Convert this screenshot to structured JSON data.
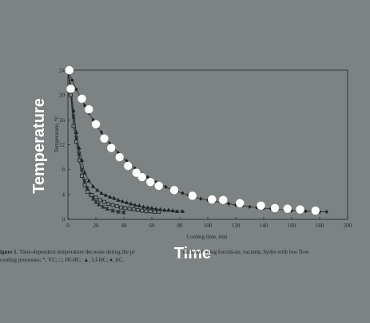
{
  "overlay": {
    "y_label": "Temperature",
    "x_label": "Time",
    "point_color": "#ffffff"
  },
  "caption": {
    "fig_label": "igure 1.",
    "line1": "Time-dependent temperature decrease during the pr",
    "line1_end": "uliflower using forced-air, vacuum, hydro with low flow",
    "line2": "cooling processes; *, VC; □, Hf-HC; ▲, Lf-HC; ♦, AC."
  },
  "chart_data": {
    "type": "scatter",
    "xlabel": "Cooling time, min",
    "ylabel": "Temperature, °C",
    "xlim": [
      0,
      200
    ],
    "ylim": [
      0,
      24
    ],
    "xticks": [
      0,
      20,
      40,
      60,
      80,
      100,
      120,
      140,
      160,
      180,
      200
    ],
    "yticks": [
      0,
      4,
      8,
      12,
      16,
      20,
      24
    ],
    "grid": false,
    "colors": {
      "axis": "#1e2324",
      "marks": "#1e2324",
      "overlay_points": "#ffffff"
    },
    "series": [
      {
        "name": "*",
        "marker": "star",
        "x": [
          0,
          2,
          4,
          6,
          8,
          10,
          12,
          14,
          16,
          18,
          20,
          22,
          25,
          28,
          32,
          36,
          40
        ],
        "y": [
          24,
          20.5,
          16.5,
          13,
          10.5,
          8,
          6.2,
          5,
          4,
          3.3,
          2.8,
          2.4,
          2,
          1.7,
          1.4,
          1.2,
          1.1
        ]
      },
      {
        "name": "□",
        "marker": "square",
        "x": [
          0,
          2,
          4,
          6,
          8,
          10,
          12,
          14,
          17,
          20,
          23,
          26,
          29,
          32,
          35,
          38,
          41,
          44,
          47,
          50,
          53,
          56,
          59,
          62,
          65
        ],
        "y": [
          24,
          20,
          15,
          12.5,
          9.5,
          7,
          5.5,
          4.4,
          3.9,
          3.5,
          3.1,
          2.8,
          2.5,
          2.3,
          2.1,
          1.9,
          1.8,
          1.7,
          1.6,
          1.5,
          1.4,
          1.3,
          1.3,
          1.2,
          1.2
        ]
      },
      {
        "name": "▲",
        "marker": "triangle",
        "x": [
          0,
          2,
          4,
          6,
          8,
          10,
          12,
          15,
          18,
          21,
          24,
          27,
          30,
          33,
          36,
          39,
          42,
          45,
          48,
          51,
          54,
          57,
          60,
          63,
          66,
          69,
          72,
          75,
          78,
          82
        ],
        "y": [
          24,
          21.5,
          17.5,
          14,
          11.5,
          9.5,
          7.5,
          6.2,
          5.3,
          4.7,
          4.2,
          3.9,
          3.6,
          3.4,
          3.1,
          2.9,
          2.7,
          2.5,
          2.3,
          2.2,
          2.0,
          1.9,
          1.8,
          1.7,
          1.6,
          1.5,
          1.5,
          1.4,
          1.3,
          1.3
        ]
      },
      {
        "name": "♦",
        "marker": "diamond",
        "x": [
          0,
          3,
          6,
          9,
          12,
          15,
          18,
          21,
          24,
          27,
          30,
          33,
          36,
          39,
          42,
          45,
          48,
          51,
          54,
          57,
          60,
          63,
          66,
          70,
          74,
          78,
          82,
          86,
          90,
          95,
          100,
          105,
          110,
          115,
          120,
          125,
          130,
          135,
          140,
          145,
          150,
          155,
          160,
          165,
          170,
          175,
          180,
          185
        ],
        "y": [
          24,
          22.4,
          20.9,
          19.6,
          18.3,
          17.1,
          16.0,
          14.9,
          14.0,
          13.1,
          12.2,
          11.4,
          10.7,
          10.0,
          9.4,
          8.8,
          8.2,
          7.7,
          7.2,
          6.8,
          6.4,
          6.0,
          5.7,
          5.2,
          4.8,
          4.5,
          4.2,
          3.9,
          3.6,
          3.3,
          3.1,
          2.9,
          2.7,
          2.5,
          2.3,
          2.2,
          2.0,
          1.9,
          1.8,
          1.7,
          1.6,
          1.5,
          1.4,
          1.4,
          1.3,
          1.3,
          1.2,
          1.2
        ]
      }
    ],
    "overlay_points": {
      "x": [
        1,
        2,
        10,
        15,
        20,
        26,
        31,
        37,
        43,
        49,
        53,
        59,
        65,
        76,
        89,
        103,
        111,
        123,
        138,
        148,
        157,
        166,
        177
      ],
      "y": [
        24,
        21,
        19.4,
        17.7,
        15.3,
        13,
        11.5,
        10,
        8.6,
        7.5,
        6.8,
        6,
        5.4,
        4.7,
        3.8,
        3.2,
        3.1,
        2.6,
        2.2,
        1.8,
        1.7,
        1.6,
        1.4
      ]
    }
  }
}
